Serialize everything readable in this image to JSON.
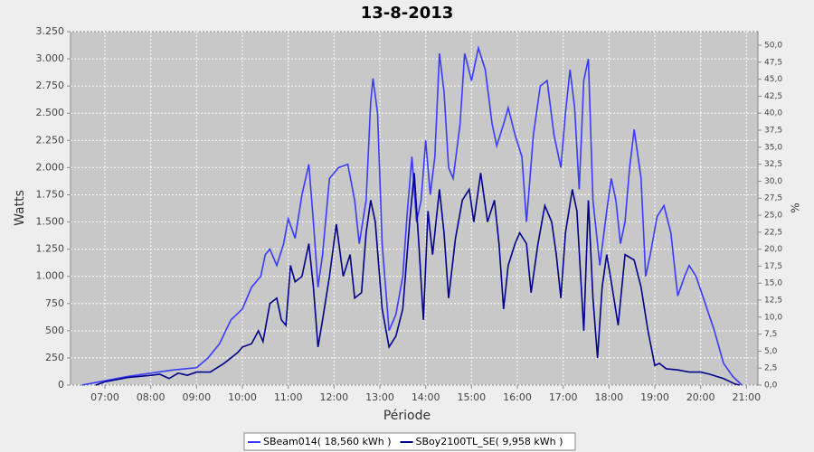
{
  "chart_data": {
    "type": "line",
    "title": "13-8-2013",
    "xlabel": "Période",
    "ylabel": "Watts",
    "y2label": "%",
    "xlim": [
      6.25,
      21.25
    ],
    "xticks": [
      {
        "value": 7,
        "label": "07:00"
      },
      {
        "value": 8,
        "label": "08:00"
      },
      {
        "value": 9,
        "label": "09:00"
      },
      {
        "value": 10,
        "label": "10:00"
      },
      {
        "value": 11,
        "label": "11:00"
      },
      {
        "value": 12,
        "label": "12:00"
      },
      {
        "value": 13,
        "label": "13:00"
      },
      {
        "value": 14,
        "label": "14:00"
      },
      {
        "value": 15,
        "label": "15:00"
      },
      {
        "value": 16,
        "label": "16:00"
      },
      {
        "value": 17,
        "label": "17:00"
      },
      {
        "value": 18,
        "label": "18:00"
      },
      {
        "value": 19,
        "label": "19:00"
      },
      {
        "value": 20,
        "label": "20:00"
      },
      {
        "value": 21,
        "label": "21:00"
      }
    ],
    "ylim": [
      0,
      3250
    ],
    "yticks": [
      0,
      250,
      500,
      750,
      {
        "value": 1000,
        "label": "1.000"
      },
      {
        "value": 1250,
        "label": "1.250"
      },
      {
        "value": 1500,
        "label": "1.500"
      },
      {
        "value": 1750,
        "label": "1.750"
      },
      {
        "value": 2000,
        "label": "2.000"
      },
      {
        "value": 2250,
        "label": "2.250"
      },
      {
        "value": 2500,
        "label": "2.500"
      },
      {
        "value": 2750,
        "label": "2.750"
      },
      {
        "value": 3000,
        "label": "3.000"
      },
      {
        "value": 3250,
        "label": "3.250"
      }
    ],
    "y2lim": [
      0,
      52
    ],
    "y2ticks": [
      {
        "value": 0,
        "label": "0,0"
      },
      {
        "value": 2.5,
        "label": "2,5"
      },
      {
        "value": 5,
        "label": "5,0"
      },
      {
        "value": 7.5,
        "label": "7,5"
      },
      {
        "value": 10,
        "label": "10,0"
      },
      {
        "value": 12.5,
        "label": "12,5"
      },
      {
        "value": 15,
        "label": "15,0"
      },
      {
        "value": 17.5,
        "label": "17,5"
      },
      {
        "value": 20,
        "label": "20,0"
      },
      {
        "value": 22.5,
        "label": "22,5"
      },
      {
        "value": 25,
        "label": "25,0"
      },
      {
        "value": 27.5,
        "label": "27,5"
      },
      {
        "value": 30,
        "label": "30,0"
      },
      {
        "value": 32.5,
        "label": "32,5"
      },
      {
        "value": 35,
        "label": "35,0"
      },
      {
        "value": 37.5,
        "label": "37,5"
      },
      {
        "value": 40,
        "label": "40,0"
      },
      {
        "value": 42.5,
        "label": "42,5"
      },
      {
        "value": 45,
        "label": "45,0"
      },
      {
        "value": 47.5,
        "label": "47,5"
      },
      {
        "value": 50,
        "label": "50,0"
      }
    ],
    "grid": true,
    "legend": "bottom",
    "series": [
      {
        "name": "SBeam014( 18,560 kWh )",
        "color": "#3a3aff",
        "x": [
          6.5,
          7,
          7.5,
          8,
          8.5,
          9,
          9.25,
          9.5,
          9.75,
          10,
          10.2,
          10.4,
          10.5,
          10.6,
          10.75,
          10.9,
          11,
          11.15,
          11.3,
          11.45,
          11.55,
          11.65,
          11.75,
          11.9,
          12.1,
          12.3,
          12.45,
          12.55,
          12.7,
          12.8,
          12.85,
          12.95,
          13.05,
          13.2,
          13.35,
          13.5,
          13.6,
          13.7,
          13.8,
          13.9,
          14,
          14.1,
          14.2,
          14.3,
          14.4,
          14.5,
          14.6,
          14.75,
          14.85,
          15,
          15.15,
          15.3,
          15.45,
          15.55,
          15.7,
          15.8,
          15.95,
          16.1,
          16.2,
          16.35,
          16.5,
          16.65,
          16.8,
          16.95,
          17.05,
          17.15,
          17.25,
          17.35,
          17.45,
          17.55,
          17.65,
          17.8,
          17.95,
          18.05,
          18.15,
          18.25,
          18.35,
          18.45,
          18.55,
          18.7,
          18.8,
          18.9,
          19.05,
          19.2,
          19.35,
          19.5,
          19.65,
          19.75,
          19.9,
          20.1,
          20.3,
          20.5,
          20.7,
          20.9
        ],
        "values": [
          0,
          40,
          80,
          110,
          140,
          160,
          250,
          380,
          600,
          700,
          900,
          1000,
          1200,
          1250,
          1100,
          1300,
          1530,
          1350,
          1750,
          2030,
          1500,
          900,
          1200,
          1900,
          2000,
          2030,
          1700,
          1300,
          1700,
          2600,
          2820,
          2500,
          1300,
          500,
          650,
          1000,
          1600,
          2100,
          1500,
          1700,
          2250,
          1750,
          2100,
          3050,
          2700,
          2000,
          1900,
          2400,
          3050,
          2800,
          3100,
          2900,
          2400,
          2200,
          2400,
          2550,
          2300,
          2100,
          1500,
          2300,
          2750,
          2800,
          2300,
          2000,
          2500,
          2900,
          2550,
          1800,
          2800,
          3000,
          1700,
          1100,
          1600,
          1900,
          1700,
          1300,
          1500,
          2000,
          2350,
          1900,
          1000,
          1200,
          1550,
          1650,
          1400,
          820,
          1000,
          1100,
          1000,
          750,
          500,
          200,
          80,
          0
        ]
      },
      {
        "name": "SBoy2100TL_SE( 9,958 kWh )",
        "color": "#00008b",
        "x": [
          6.8,
          7,
          7.5,
          8,
          8.2,
          8.4,
          8.6,
          8.8,
          9,
          9.3,
          9.6,
          9.9,
          10,
          10.2,
          10.35,
          10.45,
          10.6,
          10.75,
          10.85,
          10.95,
          11.05,
          11.15,
          11.3,
          11.45,
          11.55,
          11.65,
          11.75,
          11.9,
          12.05,
          12.2,
          12.35,
          12.45,
          12.6,
          12.7,
          12.8,
          12.9,
          13.05,
          13.2,
          13.35,
          13.5,
          13.65,
          13.75,
          13.85,
          13.95,
          14.05,
          14.15,
          14.3,
          14.4,
          14.5,
          14.65,
          14.8,
          14.95,
          15.05,
          15.2,
          15.35,
          15.5,
          15.6,
          15.7,
          15.8,
          15.95,
          16.05,
          16.2,
          16.3,
          16.45,
          16.6,
          16.75,
          16.85,
          16.95,
          17.05,
          17.2,
          17.3,
          17.45,
          17.55,
          17.65,
          17.75,
          17.85,
          17.95,
          18.05,
          18.2,
          18.35,
          18.55,
          18.7,
          18.85,
          19,
          19.1,
          19.25,
          19.5,
          19.75,
          20,
          20.2,
          20.5,
          20.75,
          20.85
        ],
        "values": [
          0,
          30,
          70,
          90,
          100,
          60,
          110,
          90,
          120,
          120,
          200,
          300,
          350,
          380,
          500,
          400,
          750,
          800,
          600,
          550,
          1100,
          950,
          1000,
          1300,
          900,
          350,
          600,
          1000,
          1480,
          1000,
          1200,
          800,
          850,
          1400,
          1700,
          1500,
          700,
          350,
          450,
          700,
          1500,
          1950,
          1300,
          600,
          1600,
          1200,
          1800,
          1400,
          800,
          1350,
          1700,
          1800,
          1500,
          1950,
          1500,
          1700,
          1300,
          700,
          1100,
          1300,
          1400,
          1300,
          850,
          1300,
          1650,
          1500,
          1200,
          800,
          1400,
          1800,
          1600,
          500,
          1700,
          800,
          250,
          900,
          1200,
          950,
          550,
          1200,
          1150,
          900,
          500,
          180,
          200,
          150,
          140,
          120,
          120,
          100,
          60,
          10,
          0
        ]
      }
    ]
  }
}
